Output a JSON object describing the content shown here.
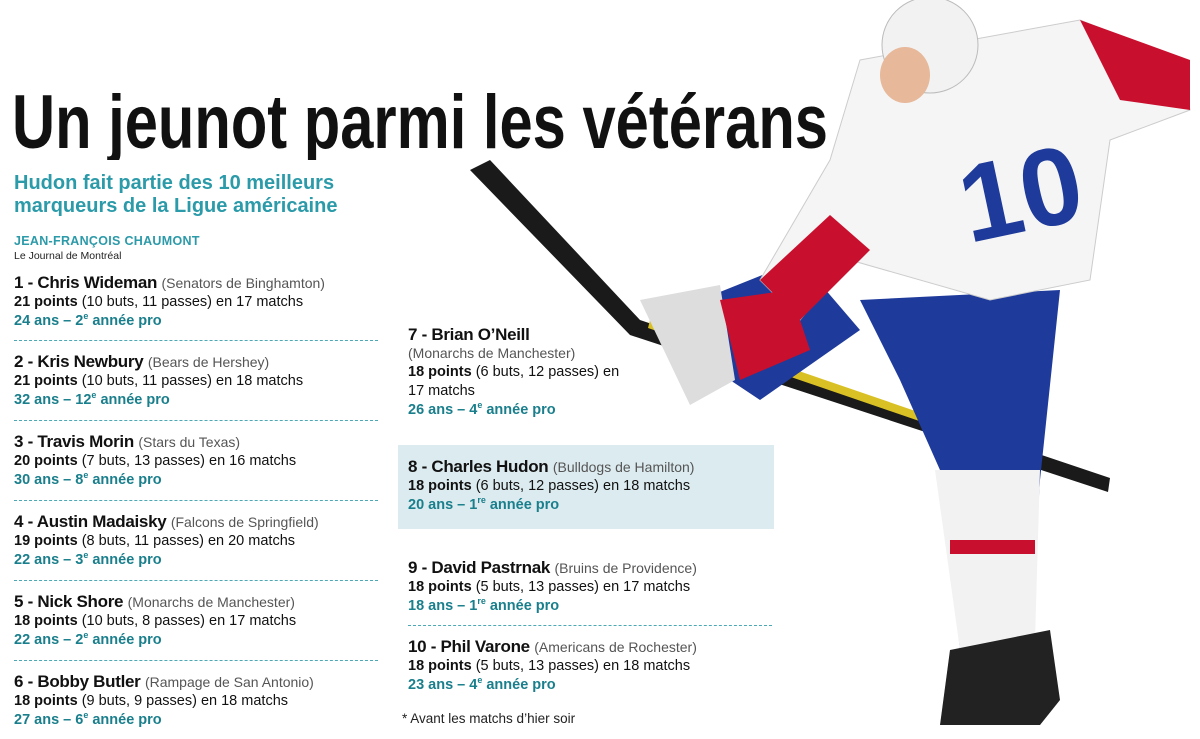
{
  "header": {
    "title": "Un jeunot parmi les vétérans",
    "subtitle": "Hudon fait partie des 10 meilleurs marqueurs de la Ligue américaine",
    "author": "JEAN-FRANÇOIS CHAUMONT",
    "publication": "Le Journal de Montréal"
  },
  "players": [
    {
      "name": "1 - Chris Wideman",
      "team": "(Senators de Binghamton)",
      "points": "21 points",
      "detail": "(10 buts, 11 passes) en 17 matchs",
      "career": "24 ans – 2",
      "sup": "e",
      "tail": " année pro"
    },
    {
      "name": "2 - Kris Newbury",
      "team": "(Bears de Hershey)",
      "points": "21 points",
      "detail": "(10 buts, 11 passes) en 18 matchs",
      "career": "32 ans – 12",
      "sup": "e",
      "tail": " année pro"
    },
    {
      "name": "3 - Travis Morin",
      "team": "(Stars du Texas)",
      "points": "20 points",
      "detail": "(7 buts, 13 passes) en 16 matchs",
      "career": "30 ans – 8",
      "sup": "e",
      "tail": " année pro"
    },
    {
      "name": "4 - Austin Madaisky",
      "team": "(Falcons de Springfield)",
      "points": "19 points",
      "detail": "(8 buts, 11 passes) en 20 matchs",
      "career": "22 ans – 3",
      "sup": "e",
      "tail": " année pro"
    },
    {
      "name": "5 - Nick Shore",
      "team": "(Monarchs de Manchester)",
      "points": "18 points",
      "detail": "(10 buts, 8 passes) en 17 matchs",
      "career": "22 ans – 2",
      "sup": "e",
      "tail": " année pro"
    },
    {
      "name": "6 - Bobby Butler",
      "team": "(Rampage de San Antonio)",
      "points": "18 points",
      "detail": "(9 buts, 9 passes) en 18 matchs",
      "career": "27 ans – 6",
      "sup": "e",
      "tail": " année pro"
    },
    {
      "name": "7 - Brian O’Neill",
      "team": "(Monarchs de Manchester)",
      "points": "18 points",
      "detail": "(6 buts, 12 passes) en 17 matchs",
      "career": "26 ans – 4",
      "sup": "e",
      "tail": " année pro"
    },
    {
      "name": "8 - Charles Hudon",
      "team": "(Bulldogs de Hamilton)",
      "points": "18 points",
      "detail": "(6 buts, 12 passes) en 18 matchs",
      "career": "20 ans – 1",
      "sup": "re",
      "tail": " année pro"
    },
    {
      "name": "9 - David Pastrnak",
      "team": "(Bruins de Providence)",
      "points": "18 points",
      "detail": "(5 buts, 13 passes) en 17 matchs",
      "career": "18 ans – 1",
      "sup": "re",
      "tail": " année pro"
    },
    {
      "name": "10 - Phil Varone",
      "team": "(Americans de Rochester)",
      "points": "18 points",
      "detail": "(5 buts, 13 passes) en 18 matchs",
      "career": "23 ans – 4",
      "sup": "e",
      "tail": " année pro"
    }
  ],
  "footnote": "* Avant les matchs d’hier soir"
}
